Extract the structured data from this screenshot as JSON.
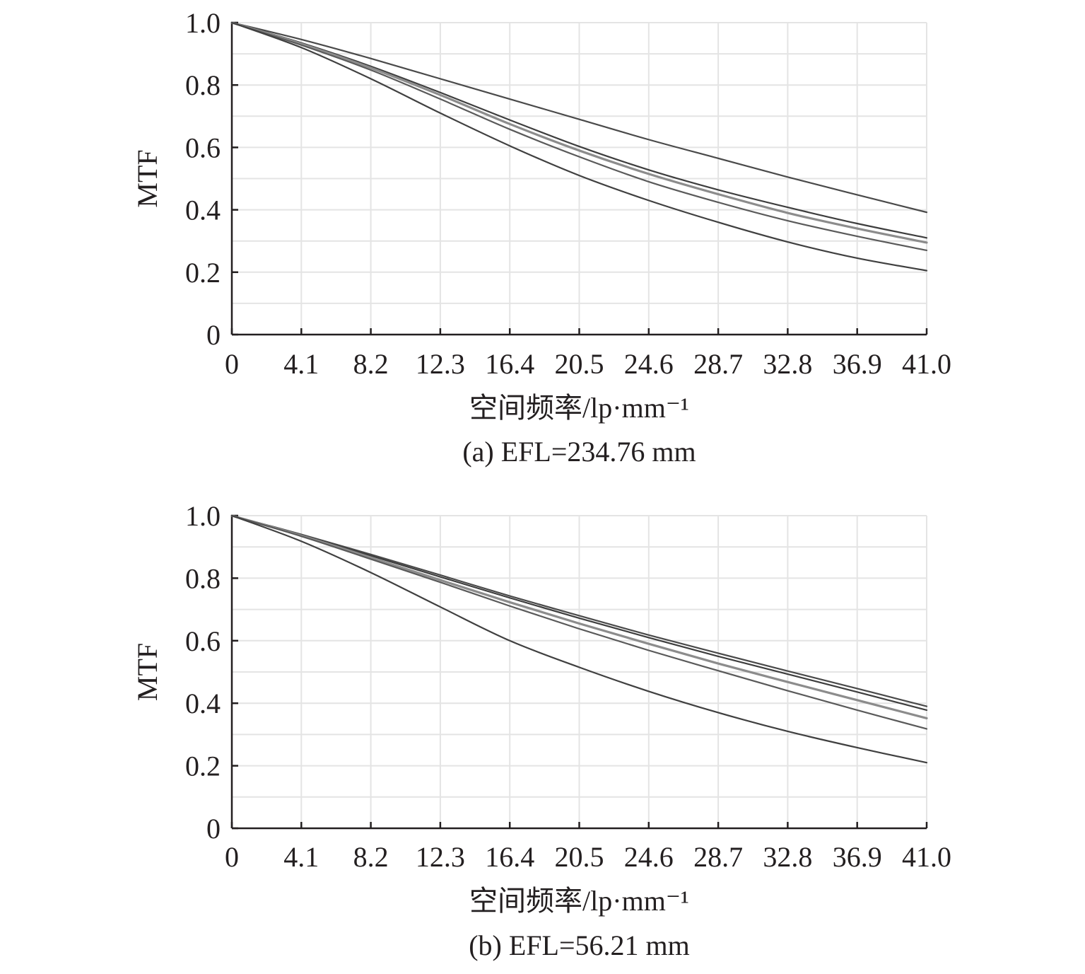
{
  "chart_data": [
    {
      "type": "line",
      "caption": "(a) EFL=234.76 mm",
      "xlabel": "空间频率/lp·mm⁻¹",
      "ylabel": "MTF",
      "xlim": [
        0,
        41.0
      ],
      "ylim": [
        0,
        1.0
      ],
      "xticks": [
        "0",
        "4.1",
        "8.2",
        "12.3",
        "16.4",
        "20.5",
        "24.6",
        "28.7",
        "32.8",
        "36.9",
        "41.0"
      ],
      "yticks": [
        "0",
        "0.2",
        "0.4",
        "0.6",
        "0.8",
        "1.0"
      ],
      "grid": true,
      "x": [
        0,
        4.1,
        8.2,
        12.3,
        16.4,
        20.5,
        24.6,
        28.7,
        32.8,
        36.9,
        41.0
      ],
      "series": [
        {
          "values": [
            1.0,
            0.946,
            0.885,
            0.82,
            0.755,
            0.69,
            0.625,
            0.565,
            0.505,
            0.448,
            0.392
          ]
        },
        {
          "values": [
            1.0,
            0.935,
            0.86,
            0.776,
            0.688,
            0.603,
            0.528,
            0.464,
            0.408,
            0.356,
            0.31
          ]
        },
        {
          "values": [
            1.0,
            0.932,
            0.855,
            0.768,
            0.675,
            0.59,
            0.515,
            0.45,
            0.39,
            0.34,
            0.295
          ]
        },
        {
          "values": [
            1.0,
            0.928,
            0.848,
            0.755,
            0.658,
            0.57,
            0.49,
            0.424,
            0.365,
            0.315,
            0.27
          ]
        },
        {
          "values": [
            1.0,
            0.92,
            0.82,
            0.71,
            0.605,
            0.51,
            0.43,
            0.36,
            0.297,
            0.245,
            0.205
          ]
        }
      ]
    },
    {
      "type": "line",
      "caption": "(b) EFL=56.21 mm",
      "xlabel": "空间频率/lp·mm⁻¹",
      "ylabel": "MTF",
      "xlim": [
        0,
        41.0
      ],
      "ylim": [
        0,
        1.0
      ],
      "xticks": [
        "0",
        "4.1",
        "8.2",
        "12.3",
        "16.4",
        "20.5",
        "24.6",
        "28.7",
        "32.8",
        "36.9",
        "41.0"
      ],
      "yticks": [
        "0",
        "0.2",
        "0.4",
        "0.6",
        "0.8",
        "1.0"
      ],
      "grid": true,
      "x": [
        0,
        4.1,
        8.2,
        12.3,
        16.4,
        20.5,
        24.6,
        28.7,
        32.8,
        36.9,
        41.0
      ],
      "series": [
        {
          "values": [
            1.0,
            0.94,
            0.876,
            0.81,
            0.743,
            0.68,
            0.618,
            0.56,
            0.503,
            0.447,
            0.39
          ]
        },
        {
          "values": [
            1.0,
            0.938,
            0.872,
            0.804,
            0.737,
            0.672,
            0.61,
            0.55,
            0.493,
            0.436,
            0.378
          ]
        },
        {
          "values": [
            1.0,
            0.936,
            0.866,
            0.794,
            0.723,
            0.655,
            0.59,
            0.527,
            0.468,
            0.41,
            0.352
          ]
        },
        {
          "values": [
            1.0,
            0.934,
            0.861,
            0.787,
            0.711,
            0.638,
            0.569,
            0.504,
            0.44,
            0.378,
            0.318
          ]
        },
        {
          "values": [
            1.0,
            0.918,
            0.818,
            0.708,
            0.6,
            0.515,
            0.438,
            0.37,
            0.31,
            0.258,
            0.21
          ]
        }
      ]
    }
  ]
}
